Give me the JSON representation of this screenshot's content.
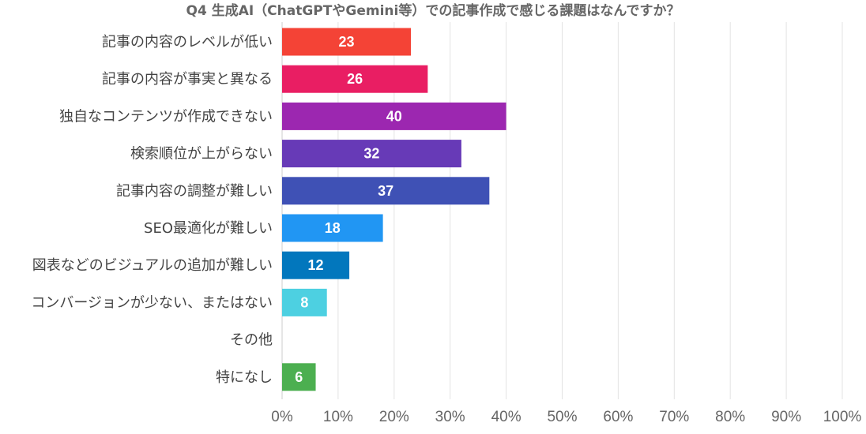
{
  "chart_data": {
    "type": "bar",
    "orientation": "horizontal",
    "title": "Q4 生成AI（ChatGPTやGemini等）での記事作成で感じる課題はなんですか？",
    "categories": [
      "記事の内容のレベルが低い",
      "記事の内容が事実と異なる",
      "独自なコンテンツが作成できない",
      "検索順位が上がらない",
      "記事内容の調整が難しい",
      "SEO最適化が難しい",
      "図表などのビジュアルの追加が難しい",
      "コンバージョンが少ない、またはない",
      "その他",
      "特になし"
    ],
    "values": [
      23,
      26,
      40,
      32,
      37,
      18,
      12,
      8,
      0,
      6
    ],
    "value_labels": [
      "23",
      "26",
      "40",
      "32",
      "37",
      "18",
      "12",
      "8",
      "",
      "6"
    ],
    "colors": [
      "#f44336",
      "#e91e63",
      "#9c27b0",
      "#673ab7",
      "#3f51b5",
      "#2196f3",
      "#0277bd",
      "#4dd0e1",
      "#9e9e9e",
      "#4caf50"
    ],
    "xlim": [
      0,
      100
    ],
    "xunit": "percent",
    "xticks": [
      "0%",
      "10%",
      "20%",
      "30%",
      "40%",
      "50%",
      "60%",
      "70%",
      "80%",
      "90%",
      "100%"
    ],
    "grid": true,
    "xlabel": "",
    "ylabel": ""
  }
}
